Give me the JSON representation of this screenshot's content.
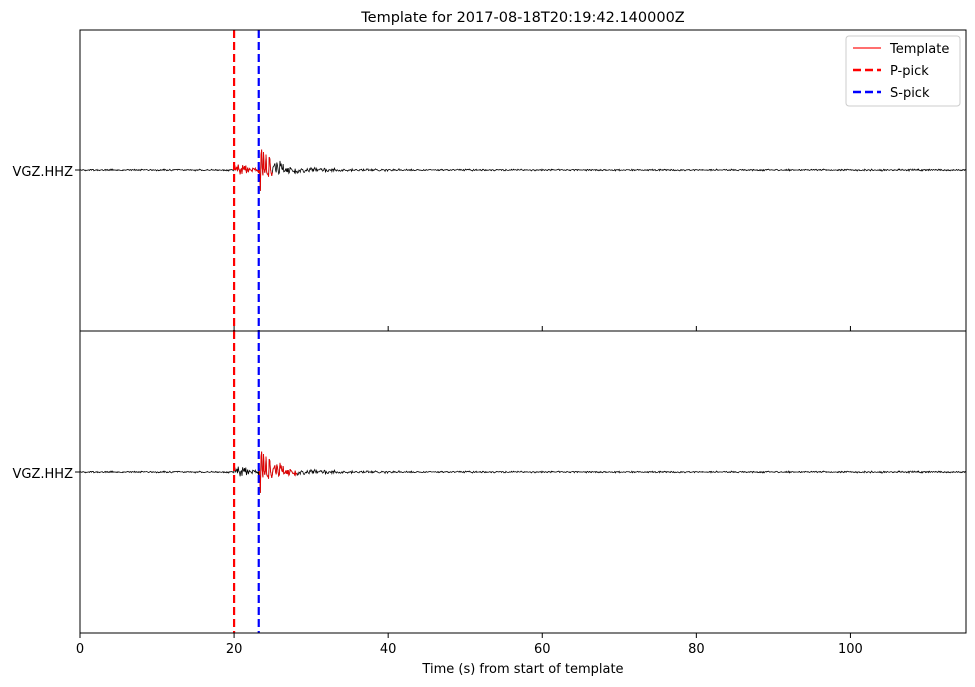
{
  "chart_data": {
    "type": "line",
    "title": "Template for 2017-08-18T20:19:42.140000Z",
    "xlabel": "Time (s) from start of template",
    "xlim": [
      0,
      115
    ],
    "xticks": [
      0,
      20,
      40,
      60,
      80,
      100
    ],
    "grid": false,
    "legend_position": "top-right",
    "legend": [
      {
        "label": "Template",
        "style": "solid",
        "color": "#ff0000"
      },
      {
        "label": "P-pick",
        "style": "dashed",
        "color": "#ff0000"
      },
      {
        "label": "S-pick",
        "style": "dashed",
        "color": "#0000ff"
      }
    ],
    "panels": [
      {
        "channel_label": "VGZ.HHZ",
        "continuous_data_color": "#000000",
        "template_window": [
          20,
          25
        ],
        "p_pick": 20,
        "s_pick": 23.2
      },
      {
        "channel_label": "VGZ.HHZ",
        "continuous_data_color": "#000000",
        "template_window": [
          23.2,
          28.2
        ],
        "p_pick": 20,
        "s_pick": 23.2
      }
    ]
  }
}
